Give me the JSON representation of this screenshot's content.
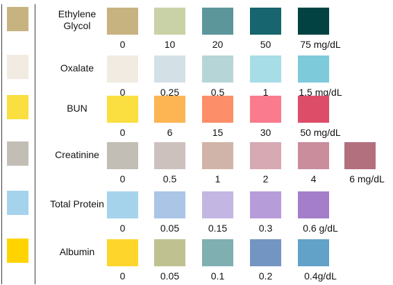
{
  "rows": [
    {
      "name": "Ethylene Glycol",
      "name_lines": [
        "Ethylene",
        "Glycol"
      ],
      "strip_color": "#c6b380",
      "pads": [
        {
          "label": "0",
          "color": "#c6b380"
        },
        {
          "label": "10",
          "color": "#c9d2a7"
        },
        {
          "label": "20",
          "color": "#5c969b"
        },
        {
          "label": "50",
          "color": "#17656e"
        },
        {
          "label": "75 mg/dL",
          "color": "#034242"
        }
      ]
    },
    {
      "name": "Oxalate",
      "name_lines": [
        "Oxalate"
      ],
      "strip_color": "#f2ebe1",
      "pads": [
        {
          "label": "0",
          "color": "#f2ebe1"
        },
        {
          "label": "0.25",
          "color": "#d3e0e5"
        },
        {
          "label": "0.5",
          "color": "#b6d5d7"
        },
        {
          "label": "1",
          "color": "#a7dde6"
        },
        {
          "label": "1.5 mg/dL",
          "color": "#7dcadb"
        }
      ]
    },
    {
      "name": "BUN",
      "name_lines": [
        "BUN"
      ],
      "strip_color": "#fbde40",
      "pads": [
        {
          "label": "0",
          "color": "#fbde40"
        },
        {
          "label": "6",
          "color": "#fdb453"
        },
        {
          "label": "15",
          "color": "#fd8e6a"
        },
        {
          "label": "30",
          "color": "#fb7b8e"
        },
        {
          "label": "50 mg/dL",
          "color": "#de4d68"
        }
      ]
    },
    {
      "name": "Creatinine",
      "name_lines": [
        "Creatinine"
      ],
      "strip_color": "#c3beb5",
      "pads": [
        {
          "label": "0",
          "color": "#c3beb5"
        },
        {
          "label": "0.5",
          "color": "#cdc1bd"
        },
        {
          "label": "1",
          "color": "#d1b4a9"
        },
        {
          "label": "2",
          "color": "#d7a9b3"
        },
        {
          "label": "4",
          "color": "#c98d9b"
        },
        {
          "label": "6 mg/dL",
          "color": "#b26f7e"
        }
      ]
    },
    {
      "name": "Total Protein",
      "name_lines": [
        "Total Protein"
      ],
      "strip_color": "#a5d3ec",
      "pads": [
        {
          "label": "0",
          "color": "#a5d3ec"
        },
        {
          "label": "0.05",
          "color": "#aac5e5"
        },
        {
          "label": "0.15",
          "color": "#c3b6e2"
        },
        {
          "label": "0.3",
          "color": "#b79cda"
        },
        {
          "label": "0.6 g/dL",
          "color": "#a57ecb"
        }
      ]
    },
    {
      "name": "Albumin",
      "name_lines": [
        "Albumin"
      ],
      "strip_color": "#fed300",
      "pads": [
        {
          "label": "0",
          "color": "#fed52b"
        },
        {
          "label": "0.05",
          "color": "#bfc190"
        },
        {
          "label": "0.1",
          "color": "#80afb1"
        },
        {
          "label": "0.2",
          "color": "#7395c1"
        },
        {
          "label": "0.4g/dL",
          "color": "#62a1c8"
        }
      ]
    }
  ]
}
